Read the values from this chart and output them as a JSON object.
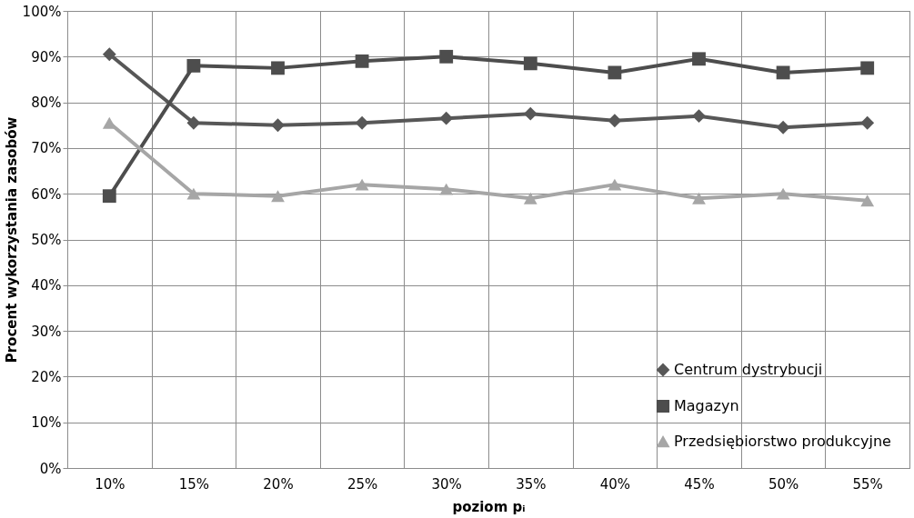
{
  "chart_data": {
    "type": "line",
    "xlabel": "poziom pᵢ",
    "ylabel": "Procent wykorzystania zasobów",
    "categories": [
      "10%",
      "15%",
      "20%",
      "25%",
      "30%",
      "35%",
      "40%",
      "45%",
      "50%",
      "55%"
    ],
    "series": [
      {
        "name": "Centrum dystrybucji",
        "color": "#575757",
        "marker": "diamond",
        "values": [
          90.5,
          75.5,
          75,
          75.5,
          76.5,
          77.5,
          76,
          77,
          74.5,
          75.5
        ]
      },
      {
        "name": "Magazyn",
        "color": "#4d4d4d",
        "marker": "square",
        "values": [
          59.5,
          88,
          87.5,
          89,
          90,
          88.5,
          86.5,
          89.5,
          86.5,
          87.5
        ]
      },
      {
        "name": "Przedsiębiorstwo produkcyjne",
        "color": "#a6a6a6",
        "marker": "triangle",
        "values": [
          75.5,
          60,
          59.5,
          62,
          61,
          59,
          62,
          59,
          60,
          58.5
        ]
      }
    ],
    "ylim": [
      0,
      100
    ],
    "yticks": [
      {
        "value": 0,
        "label": "0%"
      },
      {
        "value": 10,
        "label": "10%"
      },
      {
        "value": 20,
        "label": "20%"
      },
      {
        "value": 30,
        "label": "30%"
      },
      {
        "value": 40,
        "label": "40%"
      },
      {
        "value": 50,
        "label": "50%"
      },
      {
        "value": 60,
        "label": "60%"
      },
      {
        "value": 70,
        "label": "70%"
      },
      {
        "value": 80,
        "label": "80%"
      },
      {
        "value": 90,
        "label": "90%"
      },
      {
        "value": 100,
        "label": "100%"
      }
    ],
    "grid": true,
    "legend": "bottom right",
    "line_style": "solid"
  }
}
